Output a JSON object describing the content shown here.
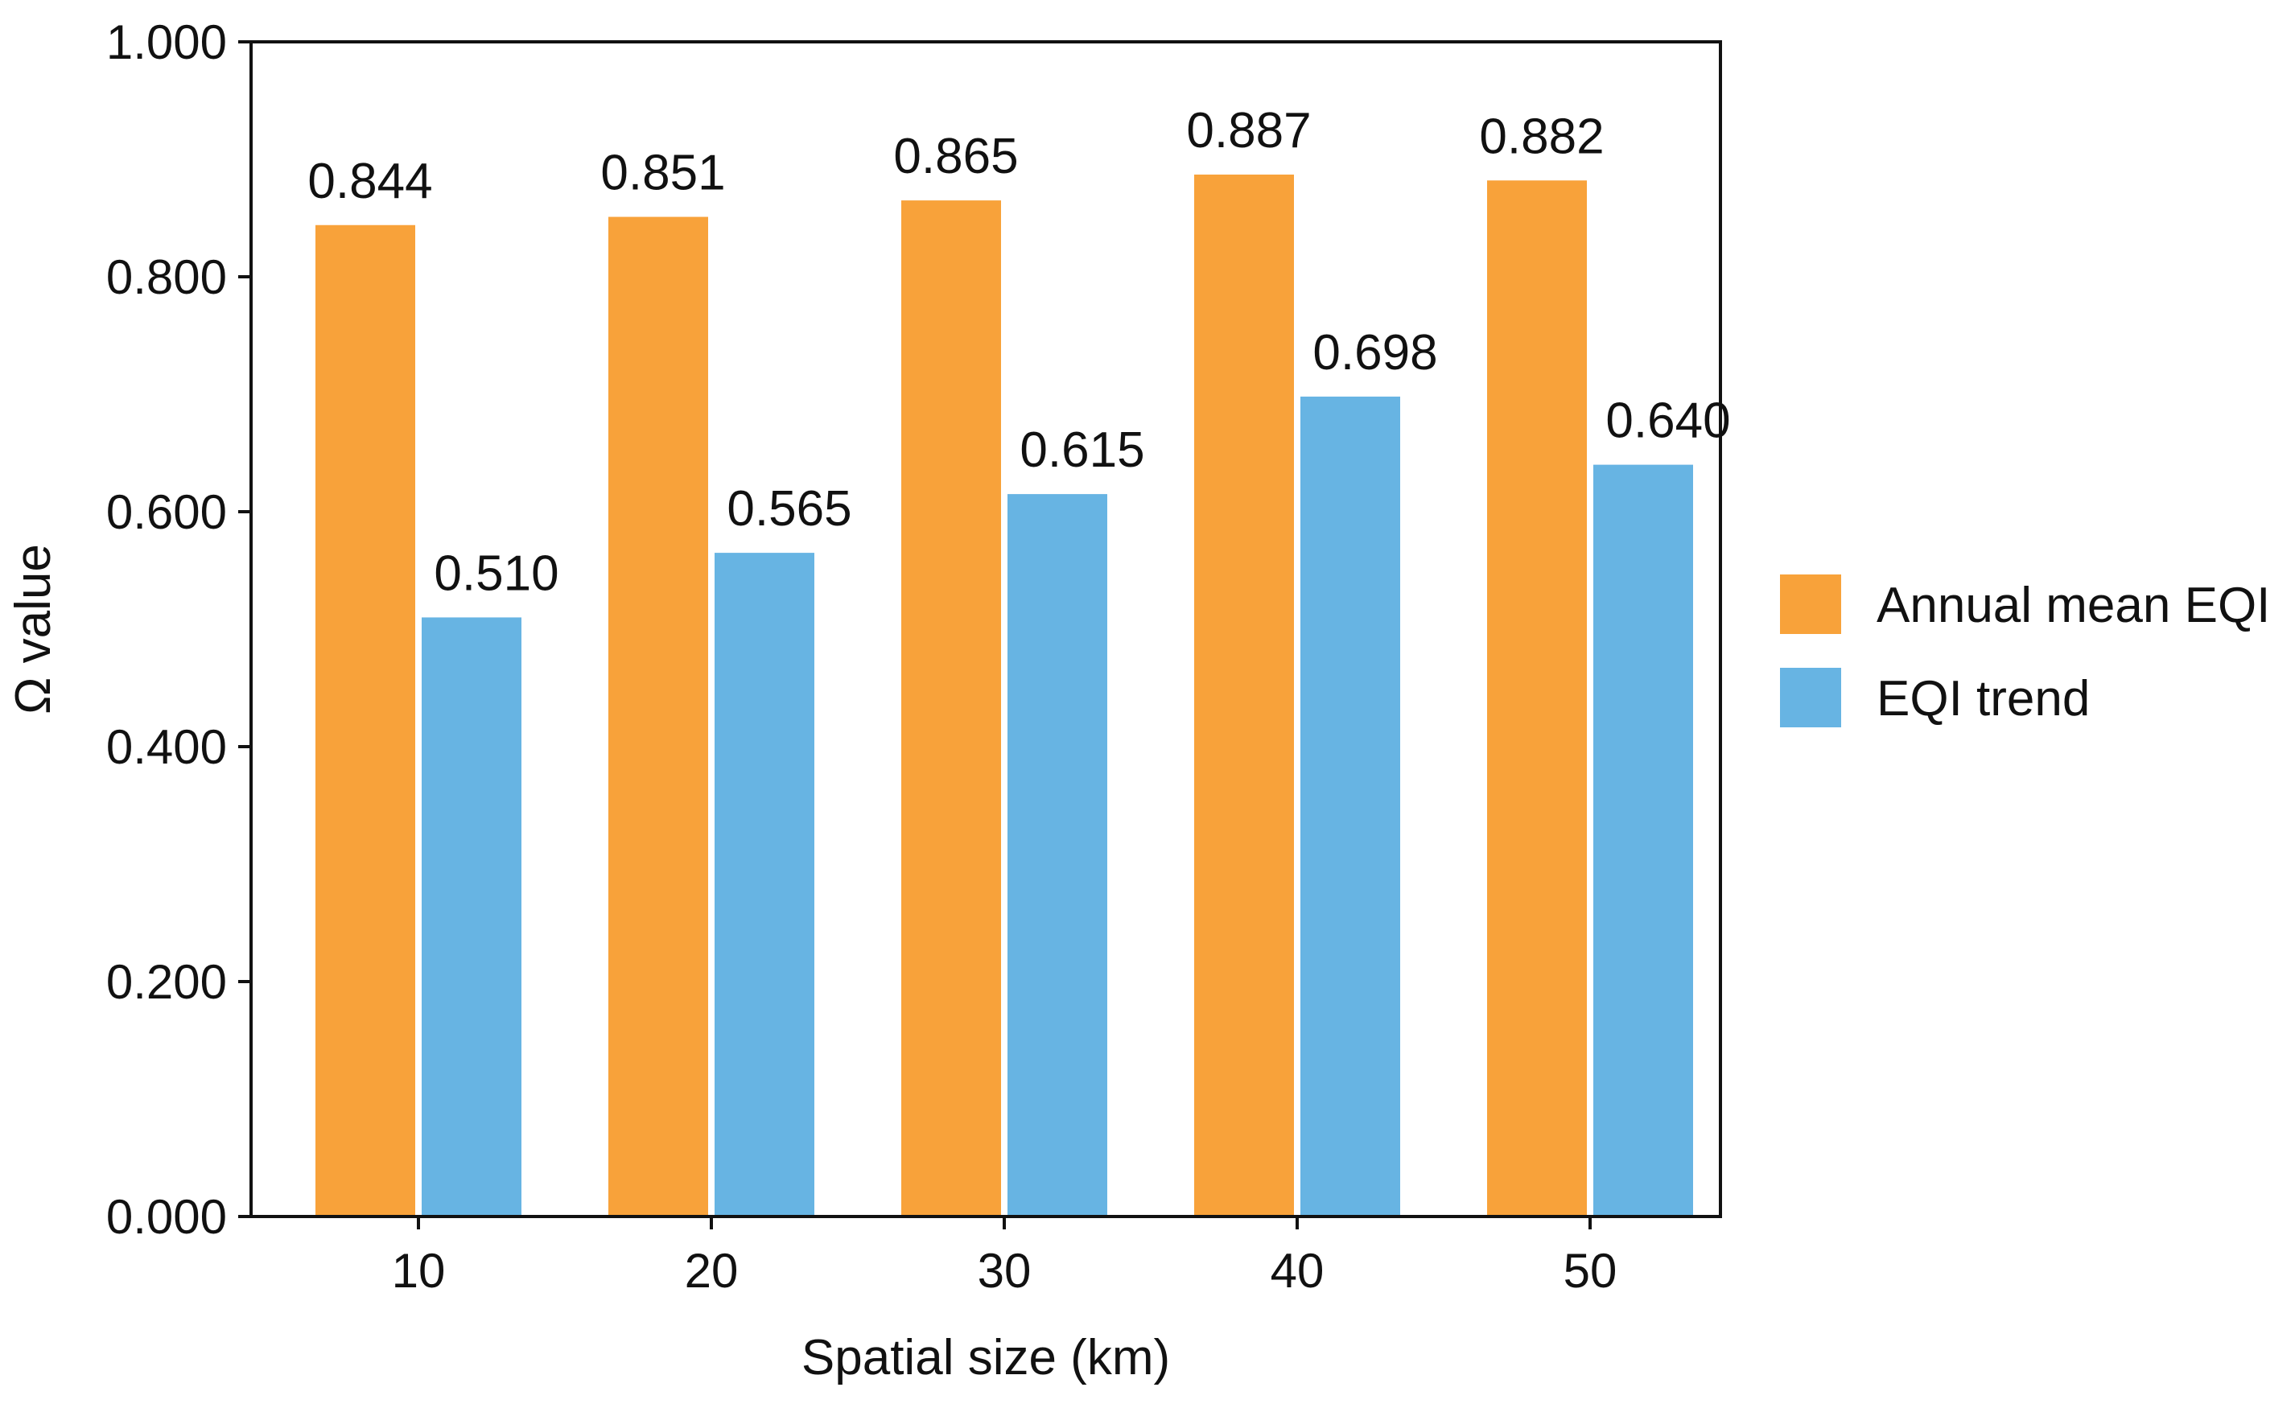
{
  "chart_data": {
    "type": "bar",
    "title": "",
    "xlabel": "Spatial size (km)",
    "ylabel": "Ω value",
    "categories": [
      "10",
      "20",
      "30",
      "40",
      "50"
    ],
    "series": [
      {
        "name": "Annual mean EQI",
        "color": "#f8a23a",
        "values": [
          0.844,
          0.851,
          0.865,
          0.887,
          0.882
        ],
        "labels": [
          "0.844",
          "0.851",
          "0.865",
          "0.887",
          "0.882"
        ]
      },
      {
        "name": "EQI trend",
        "color": "#67b4e3",
        "values": [
          0.51,
          0.565,
          0.615,
          0.698,
          0.64
        ],
        "labels": [
          "0.510",
          "0.565",
          "0.615",
          "0.698",
          "0.640"
        ]
      }
    ],
    "ylim": [
      0,
      1
    ],
    "yticks": [
      0,
      0.2,
      0.4,
      0.6,
      0.8,
      1.0
    ],
    "ytick_labels": [
      "0.000",
      "0.200",
      "0.400",
      "0.600",
      "0.800",
      "1.000"
    ],
    "grid": false,
    "legend_position": "right"
  }
}
